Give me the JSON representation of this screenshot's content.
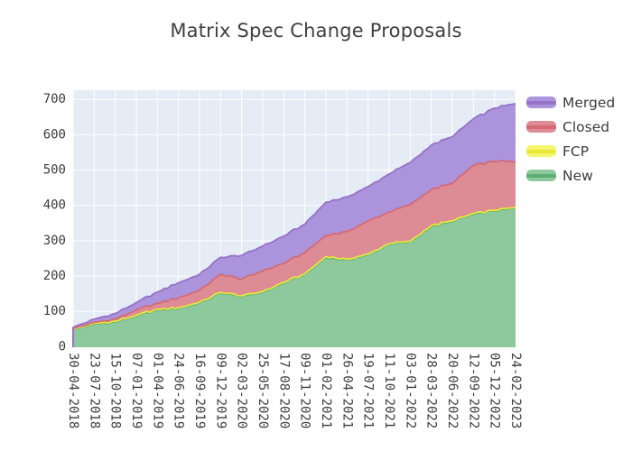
{
  "chart_data": {
    "type": "area",
    "stacked": true,
    "title": "Matrix Spec Change Proposals",
    "x_labels": [
      "30-04-2018",
      "23-07-2018",
      "15-10-2018",
      "07-01-2019",
      "01-04-2019",
      "24-06-2019",
      "16-09-2019",
      "09-12-2019",
      "02-03-2020",
      "25-05-2020",
      "17-08-2020",
      "09-11-2020",
      "01-02-2021",
      "26-04-2021",
      "19-07-2021",
      "11-10-2021",
      "03-01-2022",
      "28-03-2022",
      "20-06-2022",
      "12-09-2022",
      "05-12-2022",
      "24-02-2023"
    ],
    "x_tick_angle": 90,
    "ylim": [
      0,
      700
    ],
    "yticks": [
      0,
      100,
      200,
      300,
      400,
      500,
      600,
      700
    ],
    "grid": true,
    "legend_position": "right",
    "legend": [
      "Merged",
      "Closed",
      "FCP",
      "New"
    ],
    "colors": {
      "plot_bg": "#e5ecf6",
      "grid": "#ffffff",
      "tick_font": "#3c3c3c",
      "title_font": "#3f3f3f"
    },
    "series": [
      {
        "name": "New",
        "line": "#5cad74",
        "fill": "#8dc99d",
        "values": [
          48,
          64,
          70,
          87,
          104,
          108,
          124,
          152,
          142,
          154,
          180,
          204,
          252,
          246,
          260,
          290,
          296,
          340,
          354,
          375,
          384,
          392
        ]
      },
      {
        "name": "FCP",
        "line": "#e8e83c",
        "fill": "#f6f66e",
        "values": [
          1,
          2,
          2,
          2,
          2,
          2,
          2,
          2,
          2,
          2,
          2,
          2,
          3,
          2,
          2,
          2,
          2,
          3,
          2,
          2,
          2,
          2
        ]
      },
      {
        "name": "Closed",
        "line": "#d46a76",
        "fill": "#dd8c95",
        "values": [
          2,
          3,
          6,
          15,
          17,
          28,
          34,
          51,
          47,
          59,
          54,
          60,
          60,
          78,
          94,
          89,
          104,
          102,
          106,
          136,
          139,
          129
        ]
      },
      {
        "name": "Merged",
        "line": "#9673c7",
        "fill": "#ab94db",
        "values": [
          4,
          9,
          16,
          21,
          32,
          43,
          45,
          48,
          67,
          70,
          77,
          81,
          94,
          98,
          97,
          108,
          119,
          126,
          132,
          132,
          150,
          165
        ]
      }
    ]
  }
}
